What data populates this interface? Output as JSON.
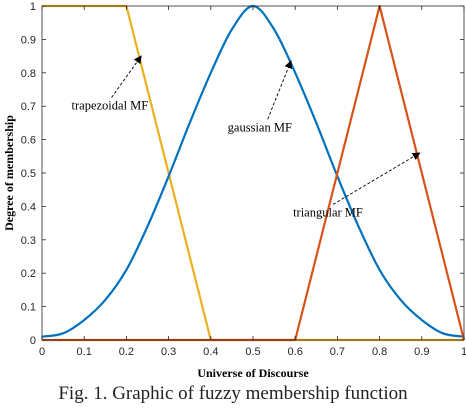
{
  "chart_data": {
    "type": "line",
    "xlabel": "Universe of Discourse",
    "ylabel": "Degree of membership",
    "xlim": [
      0,
      1
    ],
    "ylim": [
      0,
      1
    ],
    "xticks": [
      "0",
      "0.1",
      "0.2",
      "0.3",
      "0.4",
      "0.5",
      "0.6",
      "0.7",
      "0.8",
      "0.9",
      "1"
    ],
    "yticks": [
      "0",
      "0.1",
      "0.2",
      "0.3",
      "0.4",
      "0.5",
      "0.6",
      "0.7",
      "0.8",
      "0.9",
      "1"
    ],
    "grid": false,
    "series": [
      {
        "name": "trapezoidal MF",
        "color": "#EDB120",
        "x": [
          0,
          0.2,
          0.4,
          1
        ],
        "y": [
          1,
          1,
          0,
          0
        ]
      },
      {
        "name": "gaussian MF",
        "color": "#0072BD",
        "x": [
          0,
          0.05,
          0.1,
          0.15,
          0.2,
          0.25,
          0.3,
          0.35,
          0.4,
          0.45,
          0.5,
          0.55,
          0.6,
          0.65,
          0.7,
          0.75,
          0.8,
          0.85,
          0.9,
          0.95,
          1
        ],
        "y": [
          0.01,
          0.02,
          0.06,
          0.12,
          0.21,
          0.34,
          0.49,
          0.65,
          0.8,
          0.93,
          1,
          0.93,
          0.8,
          0.65,
          0.49,
          0.34,
          0.21,
          0.12,
          0.06,
          0.02,
          0.01
        ]
      },
      {
        "name": "triangular MF",
        "color": "#D95319",
        "x": [
          0,
          0.6,
          0.8,
          1
        ],
        "y": [
          0,
          0,
          1,
          0
        ]
      }
    ],
    "annotations": [
      {
        "text": "trapezoidal MF",
        "x": 0.07,
        "y": 0.69,
        "arrow_to": [
          0.235,
          0.85
        ]
      },
      {
        "text": "gaussian MF",
        "x": 0.44,
        "y": 0.625,
        "arrow_to": [
          0.59,
          0.835
        ]
      },
      {
        "text": "triangular MF",
        "x": 0.595,
        "y": 0.37,
        "arrow_to": [
          0.895,
          0.56
        ]
      }
    ]
  },
  "caption": "Fig. 1.   Graphic of fuzzy membership function"
}
